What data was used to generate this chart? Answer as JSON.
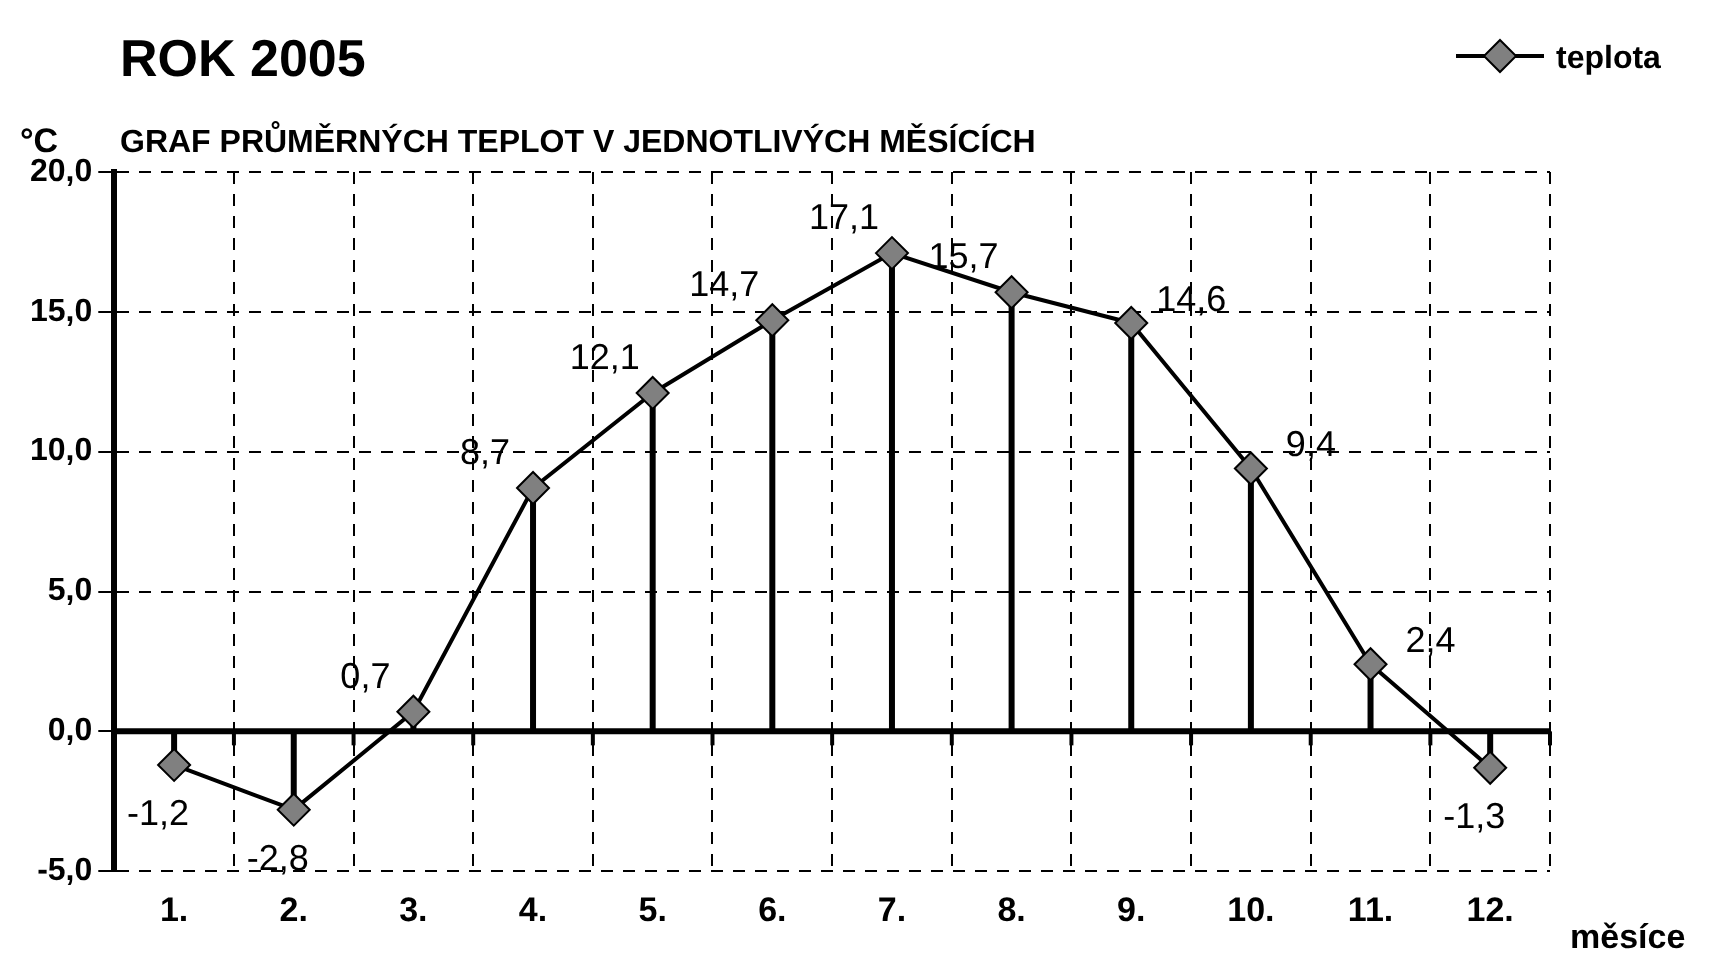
{
  "chart_data": {
    "type": "line",
    "title": "ROK 2005",
    "subtitle": "GRAF PRŮMĚRNÝCH TEPLOT V JEDNOTLIVÝCH MĚSÍCÍCH",
    "ylabel": "°C",
    "xlabel": "měsíce",
    "categories": [
      "1.",
      "2.",
      "3.",
      "4.",
      "5.",
      "6.",
      "7.",
      "8.",
      "9.",
      "10.",
      "11.",
      "12."
    ],
    "series": [
      {
        "name": "teplota",
        "color": "#808080",
        "values": [
          -1.2,
          -2.8,
          0.7,
          8.7,
          12.1,
          14.7,
          17.1,
          15.7,
          14.6,
          9.4,
          2.4,
          -1.3
        ],
        "value_labels": [
          "-1,2",
          "-2,8",
          "0,7",
          "8,7",
          "12,1",
          "14,7",
          "17,1",
          "15,7",
          "14,6",
          "9,4",
          "2,4",
          "-1,3"
        ]
      }
    ],
    "ylim": [
      -5,
      20
    ],
    "yticks": [
      {
        "value": -5,
        "label": "-5,0"
      },
      {
        "value": 0,
        "label": "0,0"
      },
      {
        "value": 5,
        "label": "5,0"
      },
      {
        "value": 10,
        "label": "10,0"
      },
      {
        "value": 15,
        "label": "15,0"
      },
      {
        "value": 20,
        "label": "20,0"
      }
    ],
    "grid": true,
    "legend": "top right",
    "marker": "diamond",
    "line_style": "solid"
  }
}
